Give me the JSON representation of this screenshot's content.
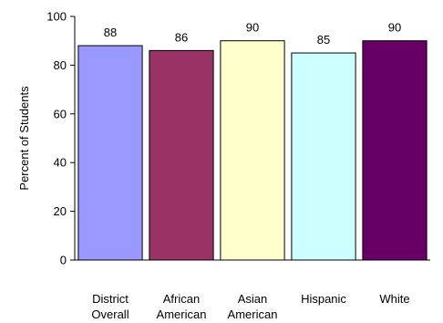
{
  "chart_data": {
    "type": "bar",
    "categories": [
      [
        "District",
        "Overall"
      ],
      [
        "African",
        "American"
      ],
      [
        "Asian",
        "American"
      ],
      [
        "Hispanic"
      ],
      [
        "White"
      ]
    ],
    "values": [
      88,
      86,
      90,
      85,
      90
    ],
    "data_labels": [
      "88",
      "86",
      "90",
      "85",
      "90"
    ],
    "bar_colors": [
      "#9999ff",
      "#993366",
      "#ffffcc",
      "#ccffff",
      "#660066"
    ],
    "title": "",
    "xlabel": "",
    "ylabel": "Percent of Students",
    "ylim": [
      0,
      100
    ],
    "yticks": [
      0,
      20,
      40,
      60,
      80,
      100
    ],
    "ytick_labels": [
      "0",
      "20",
      "40",
      "60",
      "80",
      "100"
    ],
    "grid": false,
    "legend": "none"
  }
}
